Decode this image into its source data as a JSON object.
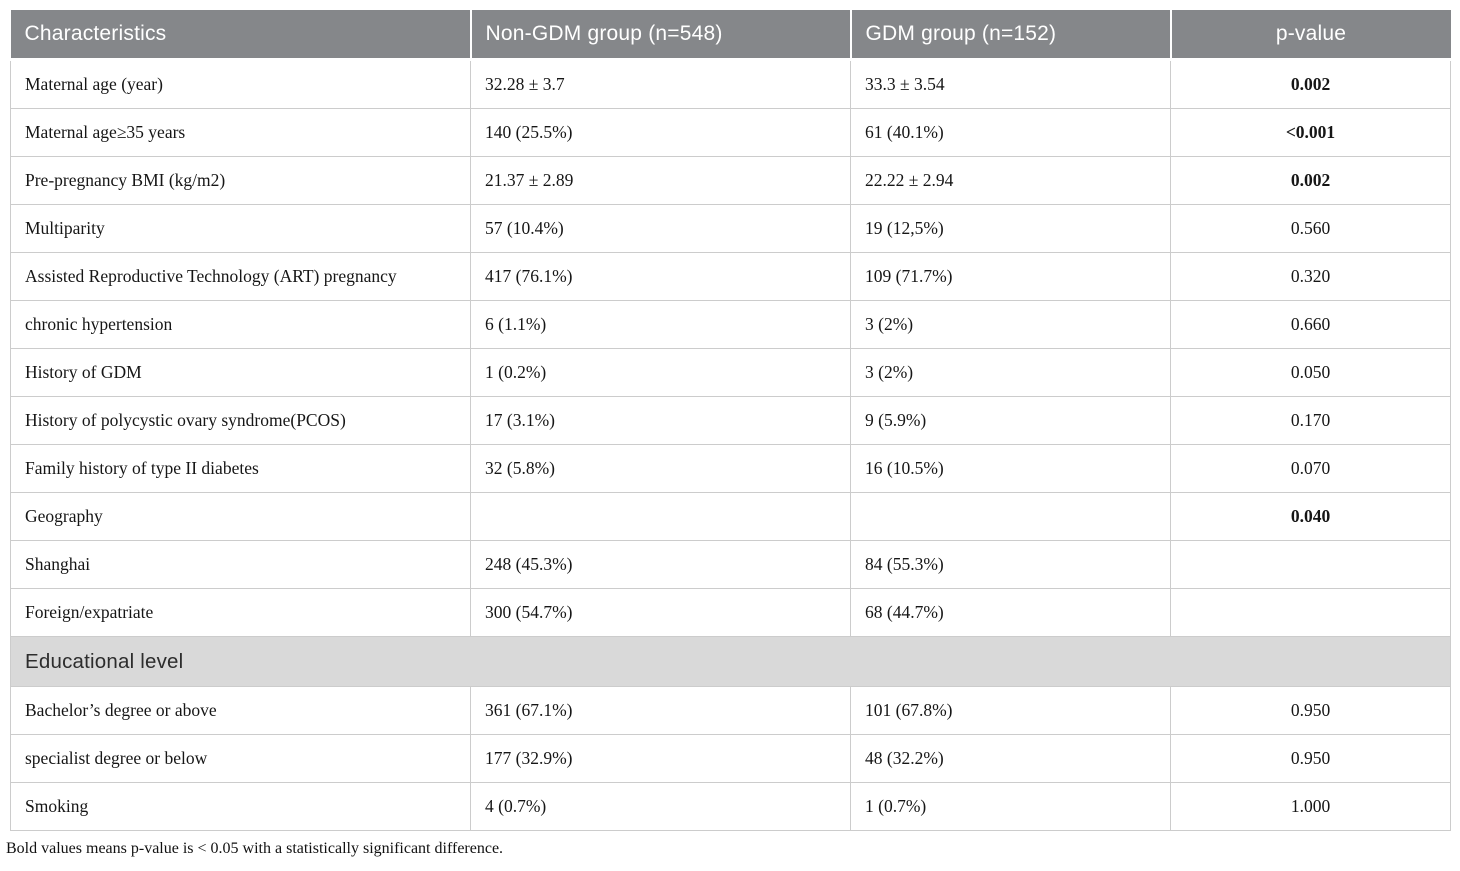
{
  "table": {
    "columns": [
      {
        "label": "Characteristics"
      },
      {
        "label": "Non-GDM group (n=548)"
      },
      {
        "label": "GDM group (n=152)"
      },
      {
        "label": "p-value"
      }
    ],
    "rows": [
      {
        "type": "data",
        "label": "Maternal age (year)",
        "non_gdm": "32.28 ± 3.7",
        "gdm": "33.3 ± 3.54",
        "p": "0.002",
        "p_bold": true
      },
      {
        "type": "data",
        "label": "Maternal age≥35 years",
        "non_gdm": "140 (25.5%)",
        "gdm": "61 (40.1%)",
        "p": "<0.001",
        "p_bold": true
      },
      {
        "type": "data",
        "label": "Pre-pregnancy BMI (kg/m2)",
        "non_gdm": "21.37 ± 2.89",
        "gdm": "22.22 ± 2.94",
        "p": "0.002",
        "p_bold": true
      },
      {
        "type": "data",
        "label": "Multiparity",
        "non_gdm": "57 (10.4%)",
        "gdm": "19 (12,5%)",
        "p": "0.560",
        "p_bold": false
      },
      {
        "type": "data",
        "label": "Assisted Reproductive Technology (ART) pregnancy",
        "non_gdm": "417 (76.1%)",
        "gdm": "109 (71.7%)",
        "p": "0.320",
        "p_bold": false
      },
      {
        "type": "data",
        "label": "chronic hypertension",
        "non_gdm": "6 (1.1%)",
        "gdm": "3 (2%)",
        "p": "0.660",
        "p_bold": false
      },
      {
        "type": "data",
        "label": "History of GDM",
        "non_gdm": "1 (0.2%)",
        "gdm": "3 (2%)",
        "p": "0.050",
        "p_bold": false
      },
      {
        "type": "data",
        "label": "History of polycystic ovary syndrome(PCOS)",
        "non_gdm": "17 (3.1%)",
        "gdm": "9 (5.9%)",
        "p": "0.170",
        "p_bold": false
      },
      {
        "type": "data",
        "label": "Family history of type II diabetes",
        "non_gdm": "32 (5.8%)",
        "gdm": "16 (10.5%)",
        "p": "0.070",
        "p_bold": false
      },
      {
        "type": "data",
        "label": "Geography",
        "non_gdm": "",
        "gdm": "",
        "p": "0.040",
        "p_bold": true
      },
      {
        "type": "data",
        "label": "Shanghai",
        "non_gdm": "248 (45.3%)",
        "gdm": "84 (55.3%)",
        "p": "",
        "p_bold": false
      },
      {
        "type": "data",
        "label": "Foreign/expatriate",
        "non_gdm": "300 (54.7%)",
        "gdm": "68 (44.7%)",
        "p": "",
        "p_bold": false
      },
      {
        "type": "section",
        "label": "Educational level"
      },
      {
        "type": "data",
        "label": "Bachelor’s degree or above",
        "non_gdm": "361 (67.1%)",
        "gdm": "101 (67.8%)",
        "p": "0.950",
        "p_bold": false
      },
      {
        "type": "data",
        "label": "specialist degree or below",
        "non_gdm": "177 (32.9%)",
        "gdm": "48 (32.2%)",
        "p": "0.950",
        "p_bold": false
      },
      {
        "type": "data",
        "label": "Smoking",
        "non_gdm": "4 (0.7%)",
        "gdm": "1 (0.7%)",
        "p": "1.000",
        "p_bold": false
      }
    ],
    "footnote": "Bold values means p-value is < 0.05 with a statistically significant difference."
  },
  "colors": {
    "header_bg": "#85878a",
    "header_text": "#ffffff",
    "section_bg": "#d9d9d9",
    "border": "#cccccc",
    "body_text": "#161616"
  }
}
